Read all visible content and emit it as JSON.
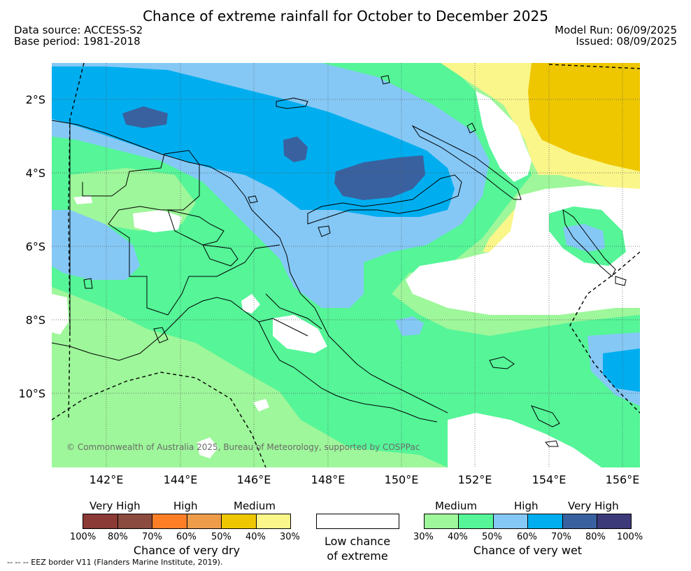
{
  "header": {
    "title": "Chance of extreme rainfall for October to December 2025",
    "data_source": "Data source: ACCESS-S2",
    "base_period": "Base period: 1981-2018",
    "model_run": "Model Run: 06/09/2025",
    "issued": "Issued: 08/09/2025"
  },
  "map": {
    "lat_labels": [
      "2°S",
      "4°S",
      "6°S",
      "8°S",
      "10°S"
    ],
    "lon_labels": [
      "142°E",
      "144°E",
      "146°E",
      "148°E",
      "150°E",
      "152°E",
      "154°E",
      "156°E"
    ],
    "credit": "© Commonwealth of Australia 2025, Bureau of Meteorology, supported by COSPPac",
    "colors": {
      "ocean_bg": "#9ef79a",
      "wet_medium": "#9ef79a",
      "wet_30_40": "#9ef79a",
      "wet_40_50": "#55f598",
      "wet_50_60": "#85c8f6",
      "wet_60_70": "#00aeef",
      "wet_70_80": "#3a619f",
      "wet_80_100": "#3d3a7a",
      "dry_30_40": "#faf68a",
      "dry_40_50": "#eec700",
      "low_chance": "#ffffff"
    }
  },
  "legend": {
    "dry": {
      "headers": [
        "Very High",
        "High",
        "Medium"
      ],
      "colors": [
        "#8b3a35",
        "#8b4b3e",
        "#ff7f27",
        "#ee9c4a",
        "#eec700",
        "#faf68a"
      ],
      "ticks": [
        "100%",
        "80%",
        "70%",
        "60%",
        "50%",
        "40%",
        "30%"
      ],
      "caption": "Chance of very dry"
    },
    "low": {
      "caption_line1": "Low chance",
      "caption_line2": "of extreme"
    },
    "wet": {
      "headers": [
        "Medium",
        "High",
        "Very High"
      ],
      "colors": [
        "#9ef79a",
        "#55f598",
        "#85c8f6",
        "#00aeef",
        "#3a619f",
        "#3d3a7a"
      ],
      "ticks": [
        "30%",
        "40%",
        "50%",
        "60%",
        "70%",
        "80%",
        "100%"
      ],
      "caption": "Chance of very wet"
    }
  },
  "footer": {
    "eez": "--  --  -- EEZ border V11 (Flanders Marine Institute, 2019)."
  }
}
